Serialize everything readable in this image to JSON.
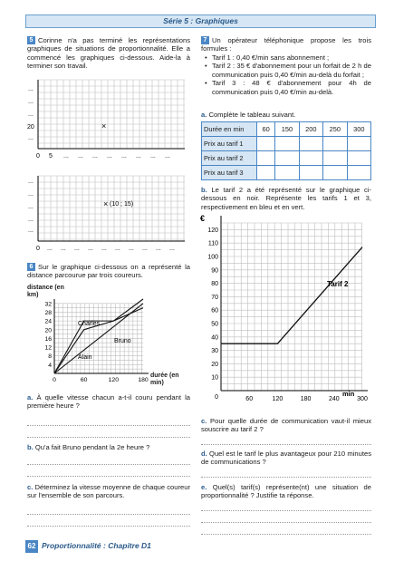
{
  "header": {
    "title": "Série 5 : Graphiques"
  },
  "ex5": {
    "num": "5",
    "text": "Corinne n'a pas terminé les représentations graphiques de situations de proportionnalité. Elle a commencé les graphiques ci-dessous. Aide-la à terminer son travail.",
    "graph1": {
      "y_label_20": "20",
      "dots": "...",
      "x0": "0",
      "x5": "5",
      "mark": "×"
    },
    "graph2": {
      "point_label": "(10 ; 15)",
      "x0": "0",
      "dots": "...",
      "mark": "×"
    }
  },
  "ex6": {
    "num": "6",
    "text": "Sur le graphique ci-dessous on a représenté la distance parcourue par trois coureurs.",
    "ylabel": "distance (en km)",
    "xlabel": "durée (en min)",
    "qa_label": "a.",
    "qa": "À quelle vitesse chacun a-t-il couru pendant la première heure ?",
    "qb_label": "b.",
    "qb": "Qu'a fait Bruno pendant la 2e heure ?",
    "qc_label": "c.",
    "qc": "Déterminez la vitesse moyenne de chaque coureur sur l'ensemble de son parcours."
  },
  "ex7": {
    "num": "7",
    "intro": "Un opérateur téléphonique propose les trois formules :",
    "tarifs": [
      "Tarif 1 : 0,40 €/min sans abonnement ;",
      "Tarif 2 : 35 € d'abonnement pour un forfait de 2 h de communication puis 0,40 €/min au-delà du forfait ;",
      "Tarif 3 : 48 € d'abonnement pour 4h de communication puis 0,40 €/min au-delà."
    ],
    "qa_label": "a.",
    "qa": "Complète le tableau suivant.",
    "table": {
      "head": "Durée en min",
      "durations": [
        "60",
        "150",
        "200",
        "250",
        "300"
      ],
      "rows": [
        "Prix au tarif 1",
        "Prix au tarif 2",
        "Prix au tarif 3"
      ]
    },
    "qb_label": "b.",
    "qb": "Le tarif 2 a été représenté sur le graphique ci-dessous en noir. Représente les tarifs 1 et 3, respectivement en bleu et en vert.",
    "graph_unit_y": "€",
    "graph_unit_x": "min",
    "tarif2_label": "Tarif 2",
    "qc_label": "c.",
    "qc": "Pour quelle durée de communication vaut-il mieux souscrire au tarif 2 ?",
    "qd_label": "d.",
    "qd": "Quel est le tarif le plus avantageux pour 210 minutes de communications ?",
    "qe_label": "e.",
    "qe": "Quel(s) tarif(s) représente(nt) une situation de proportionnalité ? Justifie ta réponse."
  },
  "chart_data": [
    {
      "type": "line",
      "x_ticks": [
        "0",
        "60",
        "120",
        "180"
      ],
      "y_ticks": [
        "4",
        "8",
        "12",
        "16",
        "20",
        "24",
        "28",
        "32"
      ],
      "xlim": [
        0,
        180
      ],
      "ylim": [
        0,
        34
      ],
      "series": [
        {
          "name": "Charles",
          "x": [
            0,
            60,
            120,
            180
          ],
          "y": [
            0,
            24,
            24,
            34
          ]
        },
        {
          "name": "Bruno",
          "x": [
            0,
            60,
            120,
            180
          ],
          "y": [
            0,
            20,
            24,
            30
          ]
        },
        {
          "name": "Alain",
          "x": [
            0,
            180
          ],
          "y": [
            0,
            32
          ]
        }
      ]
    },
    {
      "type": "line",
      "x_ticks": [
        "0",
        "60",
        "120",
        "180",
        "240",
        "300"
      ],
      "y_ticks": [
        "10",
        "20",
        "30",
        "40",
        "50",
        "60",
        "70",
        "80",
        "90",
        "100",
        "110",
        "120"
      ],
      "xlim": [
        0,
        300
      ],
      "ylim": [
        0,
        125
      ],
      "series": [
        {
          "name": "Tarif 2",
          "x": [
            0,
            120,
            300
          ],
          "y": [
            35,
            35,
            107
          ]
        }
      ]
    }
  ],
  "footer": {
    "page": "62",
    "text": "Proportionnalité : Chapitre D1"
  }
}
